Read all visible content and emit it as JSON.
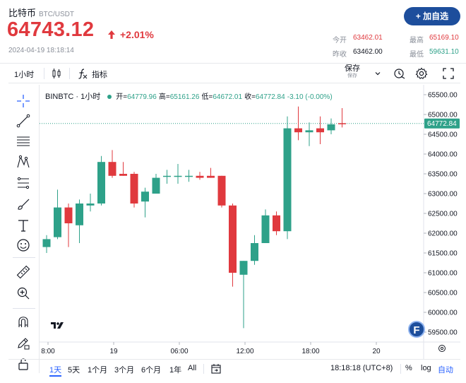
{
  "header": {
    "coin_name": "比特币",
    "pair": "BTC/USDT",
    "price": "64743.12",
    "change": "+2.01%",
    "timestamp": "2024-04-19 18:18:14",
    "add_button": "+ 加自选",
    "stats": {
      "open_label": "今开",
      "open_value": "63462.01",
      "high_label": "最高",
      "high_value": "65169.10",
      "prev_close_label": "昨收",
      "prev_close_value": "63462.00",
      "low_label": "最低",
      "low_value": "59631.10"
    }
  },
  "toolbar": {
    "interval": "1小时",
    "indicators": "指标",
    "save": "保存",
    "save_sub": "保存"
  },
  "legend": {
    "symbol": "BINBTC · 1小时",
    "open_label": "开=",
    "open": "64779.96",
    "high_label": "高=",
    "high": "65161.26",
    "low_label": "低=",
    "low": "64672.01",
    "close_label": "收=",
    "close": "64772.84",
    "change": "-3.10 (-0.00%)"
  },
  "chart_data": {
    "type": "candlestick",
    "title": "BINBTC · 1小时",
    "ylim": [
      59250,
      65750
    ],
    "yticks": [
      59500,
      60000,
      60500,
      61000,
      61500,
      62000,
      62500,
      63000,
      63500,
      64000,
      64500,
      65000,
      65500
    ],
    "xticks": [
      {
        "label": "8:00",
        "index": 0
      },
      {
        "label": "19",
        "index": 6
      },
      {
        "label": "06:00",
        "index": 12
      },
      {
        "label": "12:00",
        "index": 18
      },
      {
        "label": "18:00",
        "index": 24
      },
      {
        "label": "20",
        "index": 30
      }
    ],
    "last_price": 64772.84,
    "last_price_label": "64772.84",
    "up_color": "#2ea189",
    "down_color": "#e0393e",
    "candles": [
      {
        "o": 61650,
        "h": 61950,
        "l": 61500,
        "c": 61850
      },
      {
        "o": 61900,
        "h": 63100,
        "l": 61850,
        "c": 62650
      },
      {
        "o": 62650,
        "h": 62750,
        "l": 61650,
        "c": 62250
      },
      {
        "o": 62200,
        "h": 62850,
        "l": 61750,
        "c": 62750
      },
      {
        "o": 62700,
        "h": 63000,
        "l": 62550,
        "c": 62750
      },
      {
        "o": 62750,
        "h": 63950,
        "l": 62700,
        "c": 63800
      },
      {
        "o": 63800,
        "h": 64100,
        "l": 63400,
        "c": 63450
      },
      {
        "o": 63500,
        "h": 63800,
        "l": 63450,
        "c": 63450
      },
      {
        "o": 63500,
        "h": 63550,
        "l": 62650,
        "c": 62750
      },
      {
        "o": 62800,
        "h": 63150,
        "l": 62400,
        "c": 63050
      },
      {
        "o": 63000,
        "h": 63500,
        "l": 63000,
        "c": 63400
      },
      {
        "o": 63450,
        "h": 63600,
        "l": 63250,
        "c": 63450
      },
      {
        "o": 63450,
        "h": 63750,
        "l": 63250,
        "c": 63450
      },
      {
        "o": 63450,
        "h": 63600,
        "l": 63300,
        "c": 63450
      },
      {
        "o": 63450,
        "h": 63550,
        "l": 63350,
        "c": 63400
      },
      {
        "o": 63450,
        "h": 63650,
        "l": 63400,
        "c": 63400
      },
      {
        "o": 63450,
        "h": 63450,
        "l": 62650,
        "c": 62700
      },
      {
        "o": 62700,
        "h": 62750,
        "l": 60650,
        "c": 61000
      },
      {
        "o": 60950,
        "h": 61300,
        "l": 59600,
        "c": 61300
      },
      {
        "o": 61300,
        "h": 61950,
        "l": 61200,
        "c": 61750
      },
      {
        "o": 61750,
        "h": 62600,
        "l": 61750,
        "c": 62450
      },
      {
        "o": 62450,
        "h": 62550,
        "l": 61950,
        "c": 62050
      },
      {
        "o": 62050,
        "h": 64950,
        "l": 61850,
        "c": 64650
      },
      {
        "o": 64650,
        "h": 65200,
        "l": 64350,
        "c": 64550
      },
      {
        "o": 64550,
        "h": 64800,
        "l": 64200,
        "c": 64600
      },
      {
        "o": 64650,
        "h": 64950,
        "l": 64250,
        "c": 64550
      },
      {
        "o": 64600,
        "h": 64900,
        "l": 64500,
        "c": 64750
      },
      {
        "o": 64780,
        "h": 65161,
        "l": 64672,
        "c": 64773
      }
    ]
  },
  "bottom": {
    "ranges": [
      "1天",
      "5天",
      "1个月",
      "3个月",
      "6个月",
      "1年",
      "All"
    ],
    "time": "18:18:18 (UTC+8)",
    "percent": "%",
    "log": "log",
    "auto": "自动"
  },
  "colors": {
    "accent": "#2962ff",
    "up": "#2ea189",
    "down": "#e0393e",
    "button": "#1d4e9c"
  }
}
